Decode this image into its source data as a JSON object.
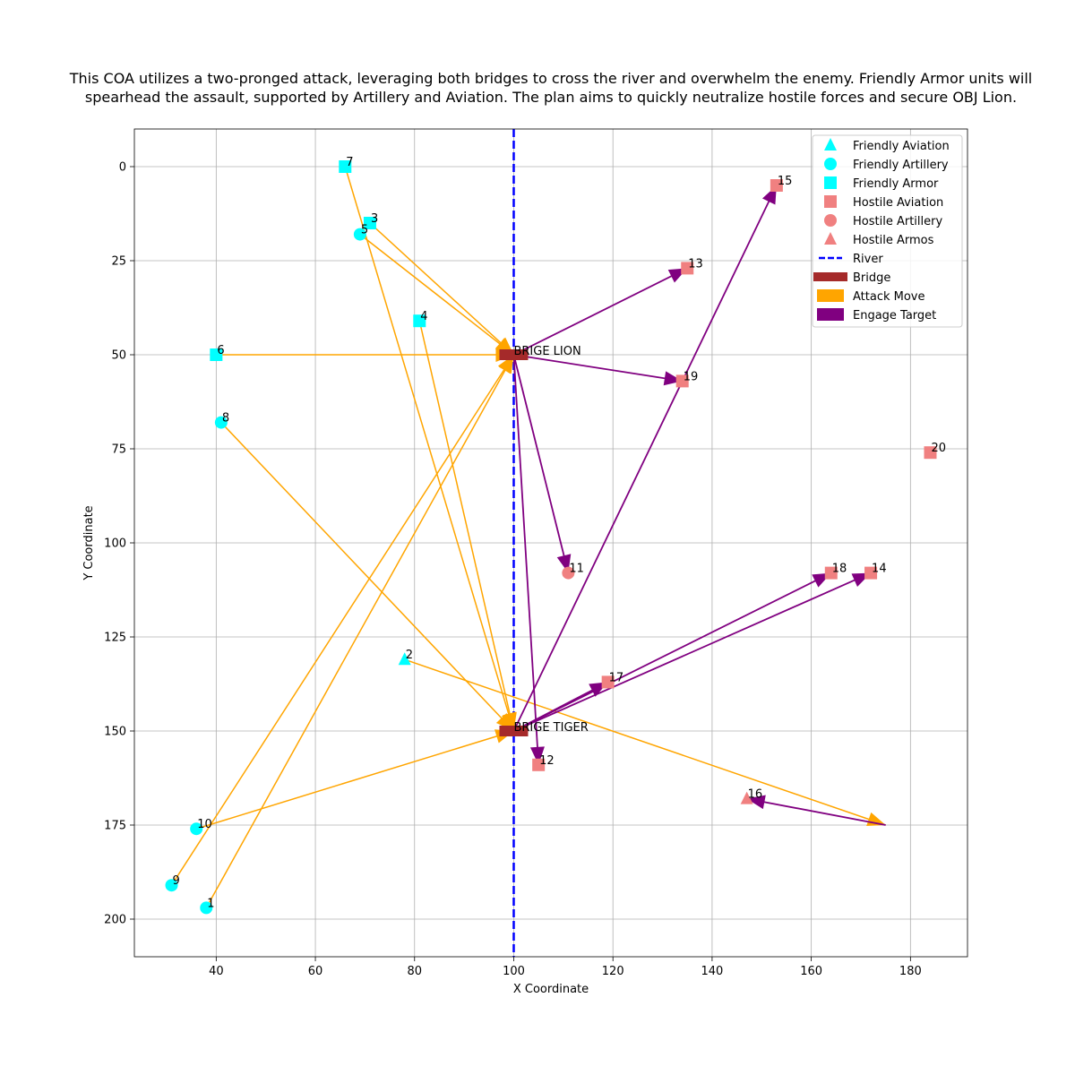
{
  "chart_data": {
    "type": "scatter",
    "title": "This COA utilizes a two-pronged attack, leveraging both bridges to cross the river and overwhelm the enemy. Friendly Armor units will spearhead the assault, supported by Artillery and Aviation. The plan aims to quickly neutralize hostile forces and secure OBJ Lion.",
    "xlabel": "X Coordinate",
    "ylabel": "Y Coordinate",
    "xlim": [
      23.5,
      191.5
    ],
    "ylim": [
      210,
      -10
    ],
    "y_inverted": true,
    "xticks": [
      40,
      60,
      80,
      100,
      120,
      140,
      160,
      180
    ],
    "yticks": [
      0,
      25,
      50,
      75,
      100,
      125,
      150,
      175,
      200
    ],
    "grid": true,
    "legend_position": "top-right",
    "colors": {
      "friendly": "#00ffff",
      "hostile": "#f08080",
      "river": "#0000ff",
      "bridge": "#a52a2a",
      "attack": "#ffa500",
      "engage": "#800080"
    },
    "units": [
      {
        "id": "1",
        "x": 38,
        "y": 197,
        "side": "friendly",
        "type": "Artillery"
      },
      {
        "id": "2",
        "x": 78,
        "y": 131,
        "side": "friendly",
        "type": "Aviation"
      },
      {
        "id": "3",
        "x": 71,
        "y": 15,
        "side": "friendly",
        "type": "Armor"
      },
      {
        "id": "4",
        "x": 81,
        "y": 41,
        "side": "friendly",
        "type": "Armor"
      },
      {
        "id": "5",
        "x": 69,
        "y": 18,
        "side": "friendly",
        "type": "Artillery"
      },
      {
        "id": "6",
        "x": 40,
        "y": 50,
        "side": "friendly",
        "type": "Armor"
      },
      {
        "id": "7",
        "x": 66,
        "y": 0,
        "side": "friendly",
        "type": "Armor"
      },
      {
        "id": "8",
        "x": 41,
        "y": 68,
        "side": "friendly",
        "type": "Artillery"
      },
      {
        "id": "9",
        "x": 31,
        "y": 191,
        "side": "friendly",
        "type": "Artillery"
      },
      {
        "id": "10",
        "x": 36,
        "y": 176,
        "side": "friendly",
        "type": "Artillery"
      },
      {
        "id": "11",
        "x": 111,
        "y": 108,
        "side": "hostile",
        "type": "Artillery"
      },
      {
        "id": "12",
        "x": 105,
        "y": 159,
        "side": "hostile",
        "type": "Aviation"
      },
      {
        "id": "13",
        "x": 135,
        "y": 27,
        "side": "hostile",
        "type": "Aviation"
      },
      {
        "id": "14",
        "x": 172,
        "y": 108,
        "side": "hostile",
        "type": "Aviation"
      },
      {
        "id": "15",
        "x": 153,
        "y": 5,
        "side": "hostile",
        "type": "Aviation"
      },
      {
        "id": "16",
        "x": 147,
        "y": 168,
        "side": "hostile",
        "type": "Armos"
      },
      {
        "id": "17",
        "x": 119,
        "y": 137,
        "side": "hostile",
        "type": "Aviation"
      },
      {
        "id": "18",
        "x": 164,
        "y": 108,
        "side": "hostile",
        "type": "Aviation"
      },
      {
        "id": "19",
        "x": 134,
        "y": 57,
        "side": "hostile",
        "type": "Aviation"
      },
      {
        "id": "20",
        "x": 184,
        "y": 76,
        "side": "hostile",
        "type": "Aviation"
      }
    ],
    "river": {
      "x": 100
    },
    "bridges": [
      {
        "name": "BRIGE LION",
        "x": 100,
        "y": 50
      },
      {
        "name": "BRIGE TIGER",
        "x": 100,
        "y": 150
      }
    ],
    "attack_moves": [
      {
        "from": [
          38,
          197
        ],
        "to": [
          100,
          50
        ]
      },
      {
        "from": [
          31,
          191
        ],
        "to": [
          100,
          50
        ]
      },
      {
        "from": [
          71,
          15
        ],
        "to": [
          100,
          50
        ]
      },
      {
        "from": [
          69,
          18
        ],
        "to": [
          100,
          50
        ]
      },
      {
        "from": [
          40,
          50
        ],
        "to": [
          100,
          50
        ]
      },
      {
        "from": [
          66,
          0
        ],
        "to": [
          100,
          150
        ]
      },
      {
        "from": [
          81,
          41
        ],
        "to": [
          100,
          150
        ]
      },
      {
        "from": [
          41,
          68
        ],
        "to": [
          100,
          150
        ]
      },
      {
        "from": [
          36,
          176
        ],
        "to": [
          100,
          150
        ]
      },
      {
        "from": [
          78,
          131
        ],
        "to": [
          175,
          175
        ]
      }
    ],
    "engage_moves": [
      {
        "from": [
          100,
          50
        ],
        "to": [
          135,
          27
        ]
      },
      {
        "from": [
          100,
          50
        ],
        "to": [
          134,
          57
        ]
      },
      {
        "from": [
          100,
          50
        ],
        "to": [
          111,
          108
        ]
      },
      {
        "from": [
          100,
          50
        ],
        "to": [
          105,
          159
        ]
      },
      {
        "from": [
          100,
          150
        ],
        "to": [
          153,
          5
        ]
      },
      {
        "from": [
          100,
          150
        ],
        "to": [
          119,
          137
        ]
      },
      {
        "from": [
          100,
          150
        ],
        "to": [
          164,
          108
        ]
      },
      {
        "from": [
          100,
          150
        ],
        "to": [
          172,
          108
        ]
      },
      {
        "from": [
          175,
          175
        ],
        "to": [
          147,
          168
        ]
      }
    ],
    "legend": [
      {
        "label": "Friendly Aviation",
        "kind": "triangle",
        "color": "#00ffff"
      },
      {
        "label": "Friendly Artillery",
        "kind": "circle",
        "color": "#00ffff"
      },
      {
        "label": "Friendly Armor",
        "kind": "square",
        "color": "#00ffff"
      },
      {
        "label": "Hostile Aviation",
        "kind": "square",
        "color": "#f08080"
      },
      {
        "label": "Hostile Artillery",
        "kind": "circle",
        "color": "#f08080"
      },
      {
        "label": "Hostile Armos",
        "kind": "triangle",
        "color": "#f08080"
      },
      {
        "label": "River",
        "kind": "dash",
        "color": "#0000ff"
      },
      {
        "label": "Bridge",
        "kind": "bar",
        "color": "#a52a2a"
      },
      {
        "label": "Attack Move",
        "kind": "patch",
        "color": "#ffa500"
      },
      {
        "label": "Engage Target",
        "kind": "patch",
        "color": "#800080"
      }
    ]
  }
}
